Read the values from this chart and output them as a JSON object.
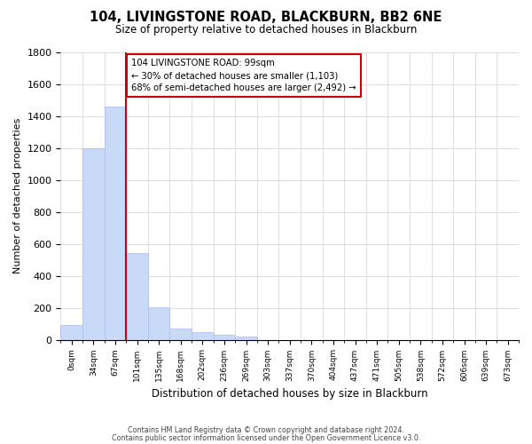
{
  "title": "104, LIVINGSTONE ROAD, BLACKBURN, BB2 6NE",
  "subtitle": "Size of property relative to detached houses in Blackburn",
  "xlabel": "Distribution of detached houses by size in Blackburn",
  "ylabel": "Number of detached properties",
  "bar_labels": [
    "0sqm",
    "34sqm",
    "67sqm",
    "101sqm",
    "135sqm",
    "168sqm",
    "202sqm",
    "236sqm",
    "269sqm",
    "303sqm",
    "337sqm",
    "370sqm",
    "404sqm",
    "437sqm",
    "471sqm",
    "505sqm",
    "538sqm",
    "572sqm",
    "606sqm",
    "639sqm",
    "673sqm"
  ],
  "bar_values": [
    90,
    1200,
    1460,
    540,
    205,
    68,
    47,
    30,
    18,
    0,
    0,
    0,
    0,
    0,
    0,
    0,
    0,
    0,
    0,
    0,
    0
  ],
  "bar_color": "#c9daf8",
  "bar_edge_color": "#aabbee",
  "vline_color": "#cc0000",
  "vline_position": 3,
  "annotation_title": "104 LIVINGSTONE ROAD: 99sqm",
  "annotation_line1": "← 30% of detached houses are smaller (1,103)",
  "annotation_line2": "68% of semi-detached houses are larger (2,492) →",
  "annotation_box_color": "#cc0000",
  "annotation_fill": "#ffffff",
  "ylim": [
    0,
    1800
  ],
  "yticks": [
    0,
    200,
    400,
    600,
    800,
    1000,
    1200,
    1400,
    1600,
    1800
  ],
  "footer1": "Contains HM Land Registry data © Crown copyright and database right 2024.",
  "footer2": "Contains public sector information licensed under the Open Government Licence v3.0.",
  "background_color": "#ffffff",
  "grid_color": "#dddddd"
}
